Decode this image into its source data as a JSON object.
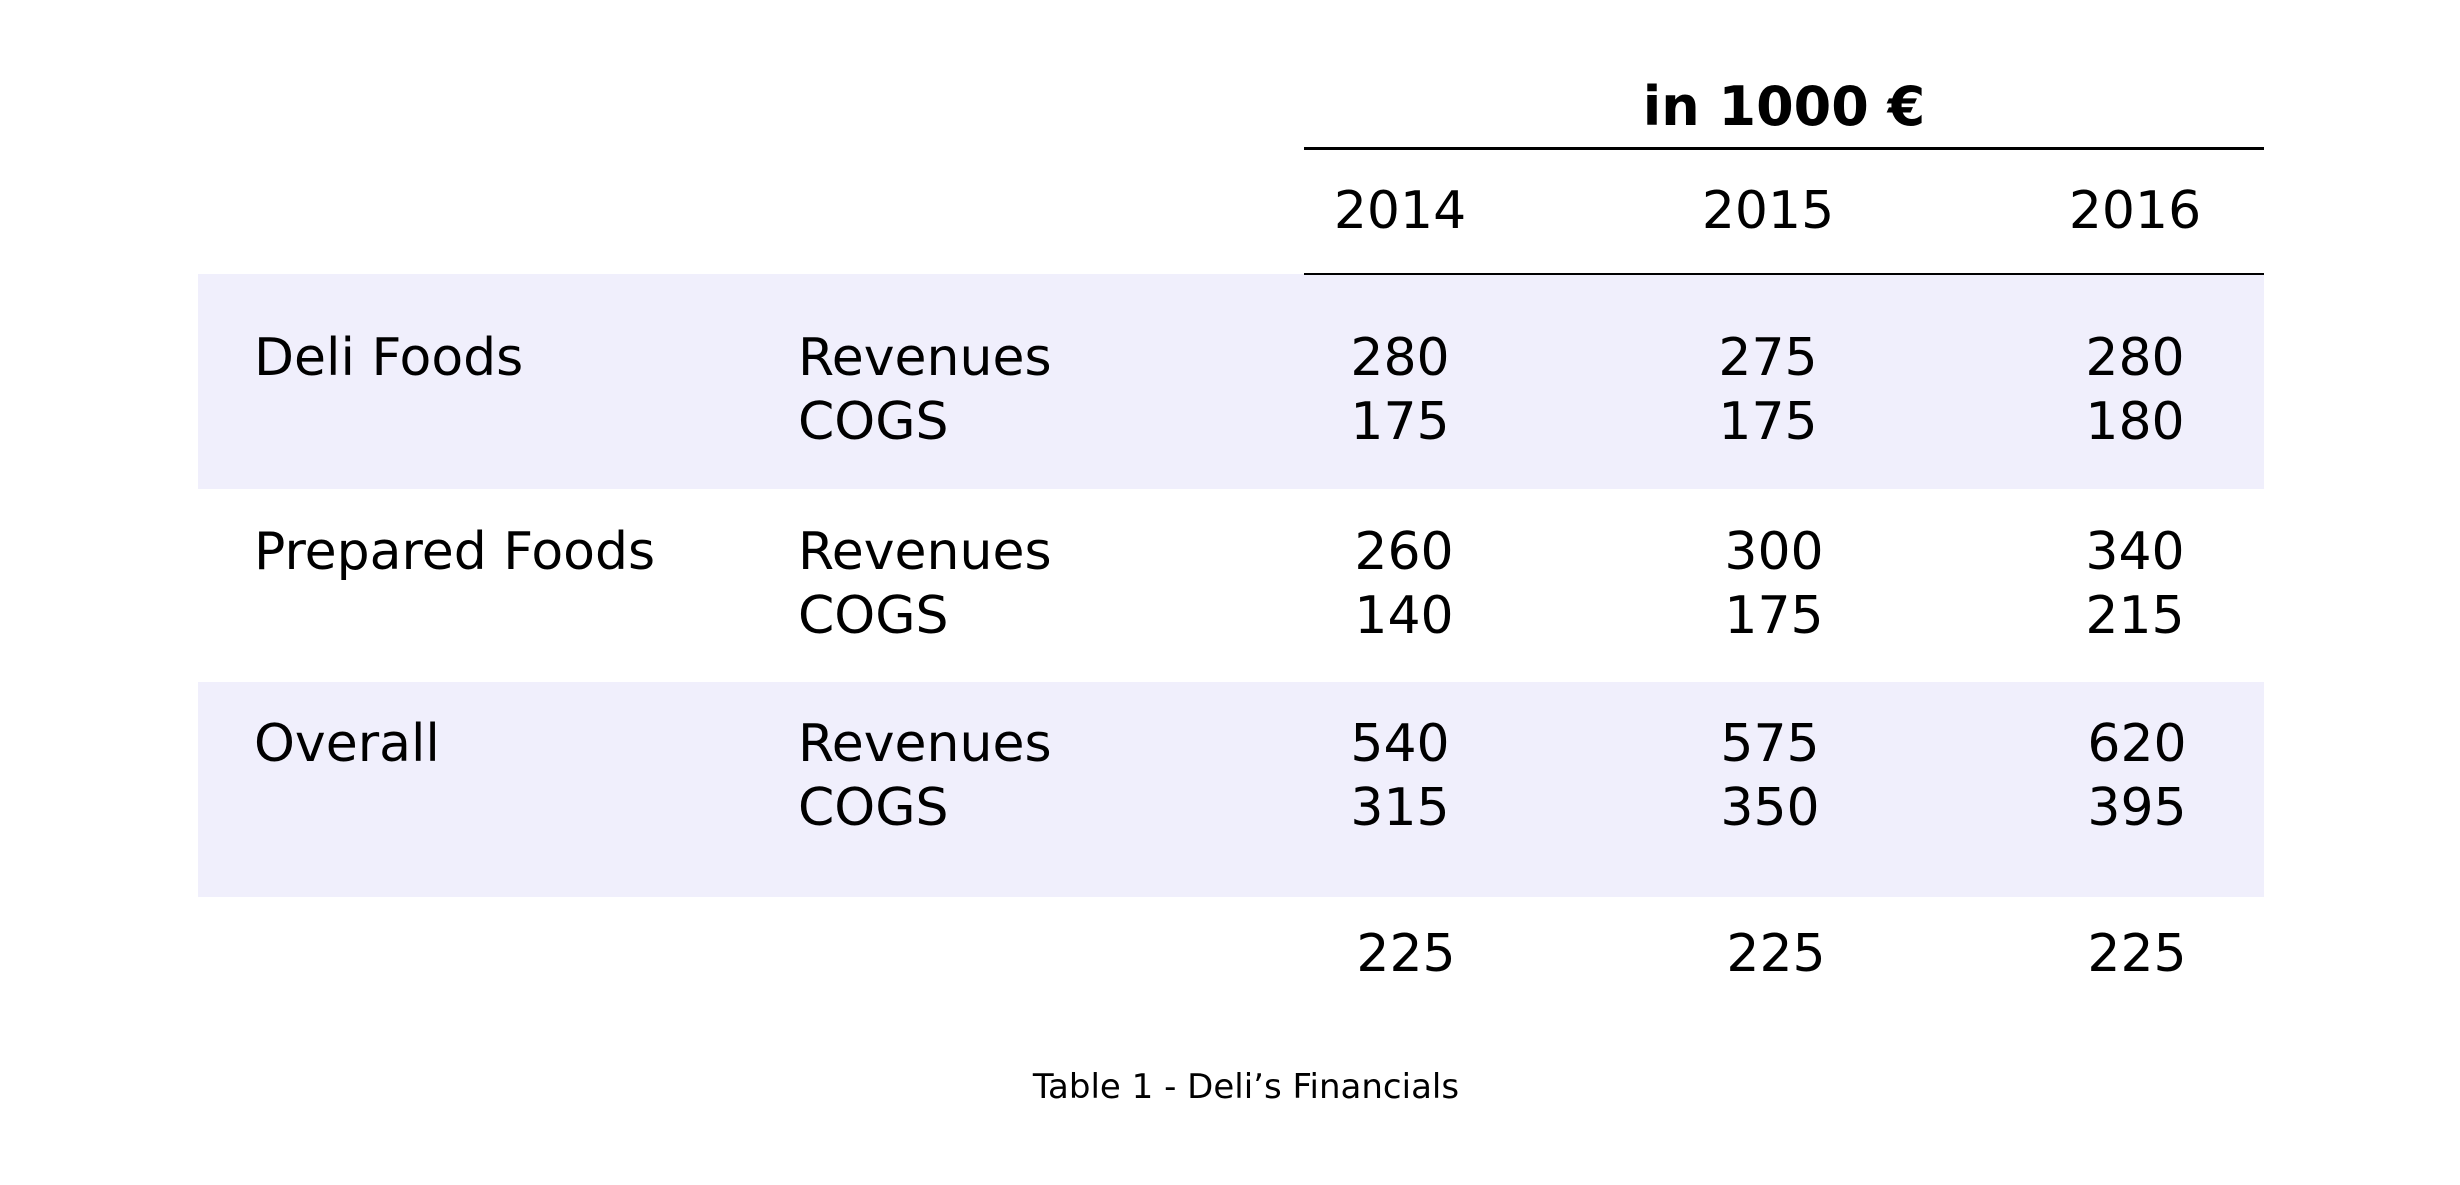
{
  "table": {
    "unit_header": "in 1000 €",
    "years": [
      "2014",
      "2015",
      "2016"
    ],
    "groups": [
      {
        "name": "Deli Foods",
        "rows": [
          {
            "metric": "Revenues",
            "values": [
              "280",
              "275",
              "280"
            ]
          },
          {
            "metric": "COGS",
            "values": [
              "175",
              "175",
              "180"
            ]
          }
        ]
      },
      {
        "name": "Prepared Foods",
        "rows": [
          {
            "metric": "Revenues",
            "values": [
              "260",
              "300",
              "340"
            ]
          },
          {
            "metric": "COGS",
            "values": [
              "140",
              "175",
              "215"
            ]
          }
        ]
      },
      {
        "name": "Overall",
        "rows": [
          {
            "metric": "Revenues",
            "values": [
              "540",
              "575",
              "620"
            ]
          },
          {
            "metric": "COGS",
            "values": [
              "315",
              "350",
              "395"
            ]
          }
        ]
      }
    ],
    "footer_values": [
      "225",
      "225",
      "225"
    ],
    "caption": "Table 1 - Deli’s Financials",
    "band_color": "#f0effc"
  }
}
